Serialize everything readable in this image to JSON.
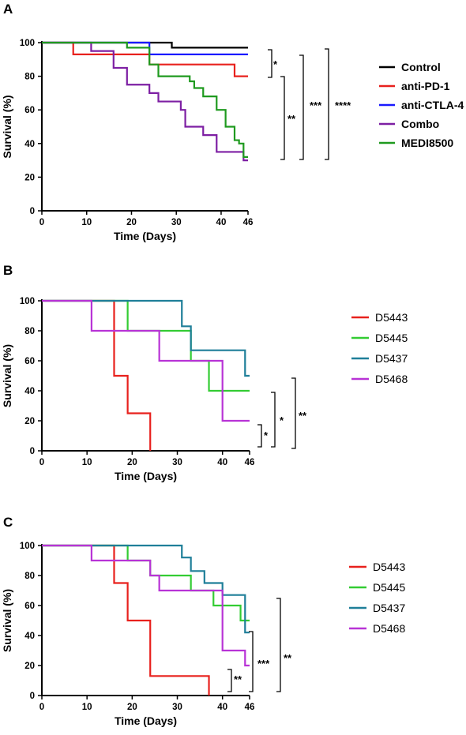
{
  "chart_data": [
    {
      "panel": "A",
      "type": "line",
      "xlabel": "Time (Days)",
      "ylabel": "Survival (%)",
      "xlim": [
        0,
        46
      ],
      "ylim": [
        0,
        100
      ],
      "xticks": [
        0,
        10,
        20,
        30,
        40,
        46
      ],
      "yticks": [
        0,
        20,
        40,
        60,
        80,
        100
      ],
      "legend_bold": true,
      "series": [
        {
          "name": "Control",
          "color": "#000000",
          "steps": [
            [
              0,
              100
            ],
            [
              24,
              100
            ],
            [
              29,
              97
            ],
            [
              46,
              97
            ]
          ]
        },
        {
          "name": "anti-PD-1",
          "color": "#e8211d",
          "steps": [
            [
              0,
              100
            ],
            [
              7,
              93
            ],
            [
              24,
              87
            ],
            [
              43,
              80
            ],
            [
              46,
              80
            ]
          ]
        },
        {
          "name": "anti-CTLA-4",
          "color": "#1a1aff",
          "steps": [
            [
              0,
              100
            ],
            [
              24,
              93
            ],
            [
              46,
              93
            ]
          ]
        },
        {
          "name": "Combo",
          "color": "#7d1fa3",
          "steps": [
            [
              0,
              100
            ],
            [
              11,
              95
            ],
            [
              16,
              85
            ],
            [
              19,
              75
            ],
            [
              24,
              70
            ],
            [
              26,
              65
            ],
            [
              31,
              60
            ],
            [
              32,
              50
            ],
            [
              36,
              45
            ],
            [
              39,
              35
            ],
            [
              45,
              30
            ],
            [
              46,
              30
            ]
          ]
        },
        {
          "name": "MEDI8500",
          "color": "#1f9a1f",
          "steps": [
            [
              0,
              100
            ],
            [
              19,
              97
            ],
            [
              24,
              87
            ],
            [
              26,
              80
            ],
            [
              33,
              77
            ],
            [
              34,
              73
            ],
            [
              36,
              68
            ],
            [
              39,
              60
            ],
            [
              41,
              50
            ],
            [
              43,
              42
            ],
            [
              44,
              40
            ],
            [
              45,
              32
            ],
            [
              46,
              32
            ]
          ]
        }
      ],
      "significance": [
        "*",
        "**",
        "***",
        "****"
      ]
    },
    {
      "panel": "B",
      "type": "line",
      "xlabel": "Time (Days)",
      "ylabel": "Survival (%)",
      "xlim": [
        0,
        46
      ],
      "ylim": [
        0,
        100
      ],
      "xticks": [
        0,
        10,
        20,
        30,
        40,
        46
      ],
      "yticks": [
        0,
        20,
        40,
        60,
        80,
        100
      ],
      "legend_bold": false,
      "series": [
        {
          "name": "D5443",
          "color": "#e8211d",
          "steps": [
            [
              0,
              100
            ],
            [
              16,
              50
            ],
            [
              19,
              25
            ],
            [
              24,
              0
            ]
          ]
        },
        {
          "name": "D5445",
          "color": "#33cc33",
          "steps": [
            [
              0,
              100
            ],
            [
              19,
              80
            ],
            [
              33,
              60
            ],
            [
              37,
              40
            ],
            [
              46,
              40
            ]
          ]
        },
        {
          "name": "D5437",
          "color": "#1f7f99",
          "steps": [
            [
              0,
              100
            ],
            [
              31,
              83
            ],
            [
              33,
              67
            ],
            [
              45,
              50
            ],
            [
              46,
              50
            ]
          ]
        },
        {
          "name": "D5468",
          "color": "#b833d6",
          "steps": [
            [
              0,
              100
            ],
            [
              11,
              80
            ],
            [
              26,
              60
            ],
            [
              40,
              20
            ],
            [
              46,
              20
            ]
          ]
        }
      ],
      "significance": [
        "*",
        "*",
        "**"
      ]
    },
    {
      "panel": "C",
      "type": "line",
      "xlabel": "Time (Days)",
      "ylabel": "Survival (%)",
      "xlim": [
        0,
        46
      ],
      "ylim": [
        0,
        100
      ],
      "xticks": [
        0,
        10,
        20,
        30,
        40,
        46
      ],
      "yticks": [
        0,
        20,
        40,
        60,
        80,
        100
      ],
      "legend_bold": false,
      "series": [
        {
          "name": "D5443",
          "color": "#e8211d",
          "steps": [
            [
              0,
              100
            ],
            [
              16,
              75
            ],
            [
              19,
              50
            ],
            [
              24,
              13
            ],
            [
              37,
              0
            ]
          ]
        },
        {
          "name": "D5445",
          "color": "#33cc33",
          "steps": [
            [
              0,
              100
            ],
            [
              19,
              90
            ],
            [
              24,
              80
            ],
            [
              33,
              70
            ],
            [
              38,
              60
            ],
            [
              44,
              50
            ],
            [
              46,
              50
            ]
          ]
        },
        {
          "name": "D5437",
          "color": "#1f7f99",
          "steps": [
            [
              0,
              100
            ],
            [
              31,
              92
            ],
            [
              33,
              83
            ],
            [
              36,
              75
            ],
            [
              40,
              67
            ],
            [
              45,
              42
            ],
            [
              46,
              42
            ]
          ]
        },
        {
          "name": "D5468",
          "color": "#b833d6",
          "steps": [
            [
              0,
              100
            ],
            [
              11,
              90
            ],
            [
              24,
              80
            ],
            [
              26,
              70
            ],
            [
              40,
              30
            ],
            [
              45,
              20
            ],
            [
              46,
              20
            ]
          ]
        }
      ],
      "significance": [
        "**",
        "***",
        "**"
      ]
    }
  ]
}
